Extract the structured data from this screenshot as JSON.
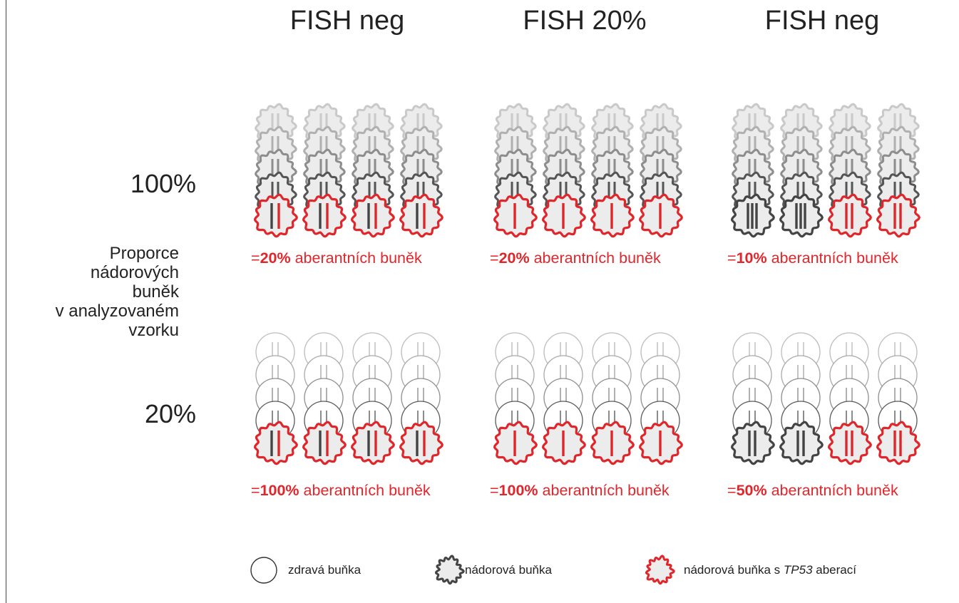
{
  "columns": [
    {
      "title": "FISH neg"
    },
    {
      "title": "FISH 20%"
    },
    {
      "title": "FISH neg"
    }
  ],
  "rows": [
    {
      "label": "100%"
    },
    {
      "label": "20%"
    }
  ],
  "axis_label_lines": [
    "Proporce",
    "nádorových",
    "buněk",
    "v analyzovaném",
    "vzorku"
  ],
  "captions": [
    [
      {
        "pre": "=",
        "pct": "20%",
        "post": " aberantních buněk"
      },
      {
        "pre": "=",
        "pct": "20%",
        "post": " aberantních buněk"
      },
      {
        "pre": "=",
        "pct": "10%",
        "post": " aberantních buněk"
      }
    ],
    [
      {
        "pre": "=",
        "pct": "100%",
        "post": " aberantních buněk"
      },
      {
        "pre": "=",
        "pct": "100%",
        "post": " aberantních buněk"
      },
      {
        "pre": "=",
        "pct": "50%",
        "post": " aberantních buněk"
      }
    ]
  ],
  "legend": {
    "healthy": "zdravá buňka",
    "tumor": "nádorová buňka",
    "tp53_pre": "nádorová buňka s ",
    "tp53_gene": "TP53",
    "tp53_post": " aberací"
  },
  "colors": {
    "red": "#e0262b",
    "dark": "#444444",
    "gray_light": "#cccccc",
    "fill": "#ececec"
  },
  "grid": {
    "stacks_per_group": 4,
    "cells_per_stack": 5,
    "groups": [
      [
        {
          "front": [
            "red-1d1r",
            "red-1d1r",
            "red-1d1r",
            "red-1d1r"
          ],
          "back": "tumor"
        },
        {
          "front": [
            "red-1r",
            "red-1r",
            "red-1r",
            "red-1r"
          ],
          "back": "tumor"
        },
        {
          "front": [
            "dark-3d",
            "dark-3d",
            "red-2r",
            "red-2r"
          ],
          "back": "tumor"
        }
      ],
      [
        {
          "front": [
            "red-1d1r",
            "red-1d1r",
            "red-1d1r",
            "red-1d1r"
          ],
          "back": "healthy"
        },
        {
          "front": [
            "red-1r",
            "red-1r",
            "red-1r",
            "red-1r"
          ],
          "back": "healthy"
        },
        {
          "front": [
            "dark-2d",
            "dark-2d",
            "red-2r",
            "red-2r"
          ],
          "back": "healthy"
        }
      ]
    ]
  }
}
